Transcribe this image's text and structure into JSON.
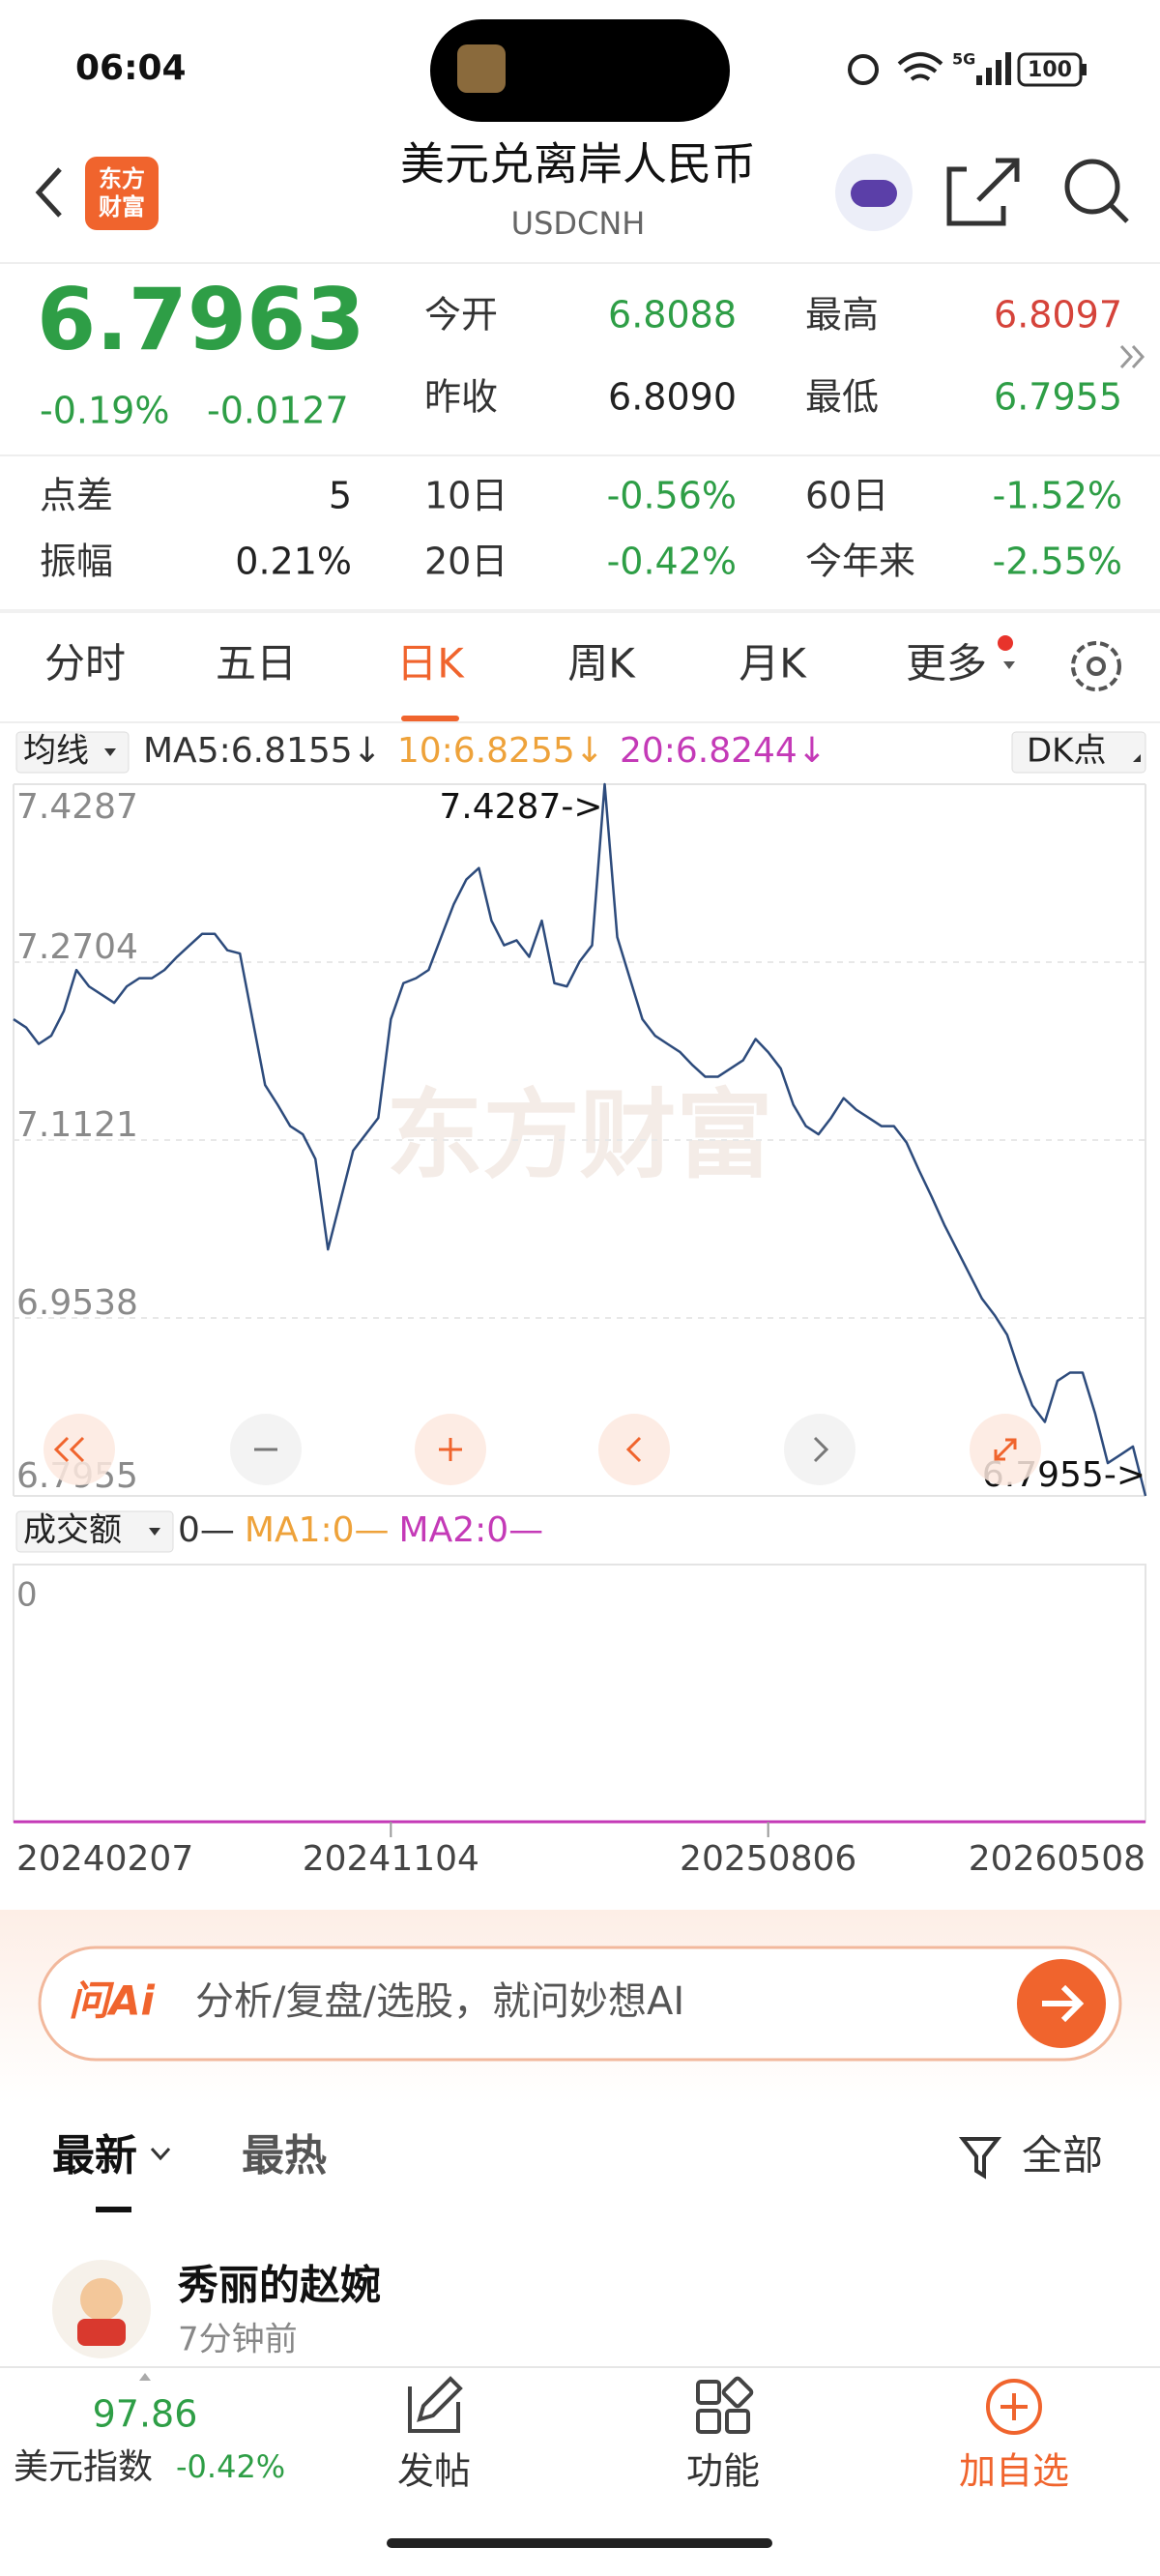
{
  "status_bar": {
    "time": "06:04",
    "battery": "100"
  },
  "header": {
    "logo": [
      "东方",
      "财富"
    ],
    "title": "美元兑离岸人民币",
    "subtitle": "USDCNH"
  },
  "quote": {
    "price": "6.7963",
    "change_percent": "-0.19%",
    "change": "-0.0127",
    "color": "#2e9e46",
    "fields": [
      {
        "label": "今开",
        "value": "6.8088",
        "color": "#2e9e46"
      },
      {
        "label": "最高",
        "value": "6.8097",
        "color": "#d5433a"
      },
      {
        "label": "昨收",
        "value": "6.8090",
        "color": "#222222"
      },
      {
        "label": "最低",
        "value": "6.7955",
        "color": "#2e9e46"
      }
    ]
  },
  "stats": [
    [
      {
        "label": "点差",
        "value": "5",
        "color": "#222222"
      },
      {
        "label": "10日",
        "value": "-0.56%",
        "color": "#2e9e46"
      },
      {
        "label": "60日",
        "value": "-1.52%",
        "color": "#2e9e46"
      }
    ],
    [
      {
        "label": "振幅",
        "value": "0.21%",
        "color": "#222222"
      },
      {
        "label": "20日",
        "value": "-0.42%",
        "color": "#2e9e46"
      },
      {
        "label": "今年来",
        "value": "-2.55%",
        "color": "#2e9e46"
      }
    ]
  ],
  "tabs": {
    "items": [
      "分时",
      "五日",
      "日K",
      "周K",
      "月K",
      "更多"
    ],
    "active": 2
  },
  "indicator_bar": {
    "selector": "均线",
    "items": [
      {
        "text": "MA5:6.8155↓",
        "color": "#333333"
      },
      {
        "text": "10:6.8255↓",
        "color": "#eea23a"
      },
      {
        "text": "20:6.8244↓",
        "color": "#c43ab7"
      }
    ],
    "button": "DK点"
  },
  "chart_data": {
    "type": "line",
    "color": "#2d4b7c",
    "watermark": "东方财富",
    "categories": [
      "20240207",
      null,
      null,
      null,
      null,
      null,
      null,
      null,
      null,
      null,
      null,
      null,
      null,
      null,
      null,
      null,
      null,
      null,
      null,
      null,
      null,
      null,
      null,
      null,
      null,
      null,
      null,
      null,
      null,
      null,
      "20241104",
      null,
      null,
      null,
      null,
      null,
      null,
      null,
      null,
      null,
      null,
      null,
      null,
      null,
      null,
      null,
      null,
      null,
      null,
      null,
      null,
      null,
      null,
      null,
      null,
      null,
      null,
      null,
      null,
      null,
      "20250806",
      null,
      null,
      null,
      null,
      null,
      null,
      null,
      null,
      null,
      null,
      null,
      null,
      null,
      null,
      null,
      null,
      null,
      null,
      null,
      null,
      null,
      null,
      null,
      null,
      null,
      null,
      null,
      null,
      null,
      "20260508"
    ],
    "values": [
      7.2196,
      7.2123,
      7.1976,
      7.205,
      7.2269,
      7.2634,
      7.2488,
      7.2415,
      7.2342,
      7.2488,
      7.2561,
      7.2561,
      7.2634,
      7.2751,
      7.2854,
      7.2956,
      7.2956,
      7.281,
      7.2781,
      7.2196,
      7.1611,
      7.1435,
      7.1245,
      7.1172,
      7.0953,
      7.0148,
      7.0587,
      7.1026,
      7.1172,
      7.1318,
      7.2196,
      7.2517,
      7.2561,
      7.2634,
      7.2927,
      7.3219,
      7.3439,
      7.3541,
      7.3073,
      7.2854,
      7.2898,
      7.2751,
      7.3073,
      7.2517,
      7.2488,
      7.2708,
      7.2854,
      7.4287,
      7.2927,
      7.2561,
      7.2196,
      7.205,
      7.1976,
      7.1903,
      7.1786,
      7.1684,
      7.1684,
      7.1757,
      7.183,
      7.202,
      7.1903,
      7.1757,
      7.1435,
      7.1245,
      7.1172,
      7.1318,
      7.1494,
      7.1391,
      7.1318,
      7.1245,
      7.1245,
      7.1099,
      7.085,
      7.0616,
      7.0368,
      7.0148,
      6.9929,
      6.971,
      6.9563,
      6.9388,
      6.9052,
      6.8759,
      6.8613,
      6.8978,
      6.9052,
      6.9052,
      6.8686,
      6.8247,
      6.832,
      6.8394,
      6.7955
    ],
    "ylim": [
      6.7955,
      7.4287
    ],
    "yticks": [
      7.4287,
      7.2704,
      7.1121,
      6.9538,
      6.7955
    ],
    "grid": true,
    "max_annotation": "7.4287->",
    "min_annotation": "6.7955->"
  },
  "volume_panel": {
    "selector": "成交额",
    "items": [
      {
        "text": "0—",
        "color": "#333333"
      },
      {
        "text": "MA1:0—",
        "color": "#eea23a"
      },
      {
        "text": "MA2:0—",
        "color": "#c43ab7"
      }
    ],
    "ytick": "0"
  },
  "ai_bar": {
    "brand": "问Ai",
    "placeholder": "分析/复盘/选股，就问妙想AI"
  },
  "feed": {
    "tabs": [
      "最新",
      "最热"
    ],
    "filter": "全部",
    "post": {
      "author": "秀丽的赵婉",
      "time": "7分钟前"
    }
  },
  "bottom_bar": {
    "index_value": "97.86",
    "index_name": "美元指数",
    "index_change": "-0.42%",
    "items": [
      "发帖",
      "功能",
      "加自选"
    ]
  }
}
